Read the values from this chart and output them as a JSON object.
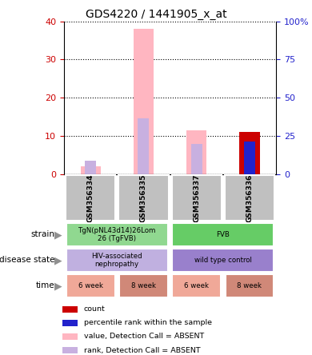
{
  "title": "GDS4220 / 1441905_x_at",
  "samples": [
    "GSM356334",
    "GSM356335",
    "GSM356337",
    "GSM356336"
  ],
  "bar_data": {
    "pink_value": [
      2.0,
      38.0,
      11.5,
      0.0
    ],
    "lavender_rank": [
      3.5,
      14.5,
      7.8,
      0.0
    ],
    "red_count": [
      0.0,
      0.0,
      0.0,
      11.0
    ],
    "blue_percentile": [
      0.0,
      0.0,
      0.0,
      8.5
    ]
  },
  "ylim": [
    0,
    40
  ],
  "yticks_left": [
    0,
    10,
    20,
    30,
    40
  ],
  "yticks_right_vals": [
    0,
    25,
    50,
    75,
    100
  ],
  "yticks_right_labels": [
    "0",
    "25",
    "50",
    "75",
    "100%"
  ],
  "colors": {
    "pink": "#FFB6C1",
    "lavender": "#C8B0E0",
    "red": "#CC0000",
    "blue": "#2222CC",
    "sample_bg": "#C0C0C0",
    "strain_tg_bg": "#90D890",
    "strain_fvb_bg": "#66CC66",
    "disease_tg_bg": "#C0B0E0",
    "disease_fvb_bg": "#9980CC",
    "time_6w_bg": "#F0A898",
    "time_8w_bg": "#D08878",
    "arrow_color": "#909090"
  },
  "metadata": {
    "strain": [
      {
        "label": "TgN(pNL43d14)26Lom\n26 (TgFVB)",
        "span": [
          0,
          2
        ],
        "color": "#90D890"
      },
      {
        "label": "FVB",
        "span": [
          2,
          4
        ],
        "color": "#66CC66"
      }
    ],
    "disease_state": [
      {
        "label": "HIV-associated\nnephropathy",
        "span": [
          0,
          2
        ],
        "color": "#C0B0E0"
      },
      {
        "label": "wild type control",
        "span": [
          2,
          4
        ],
        "color": "#9980CC"
      }
    ],
    "time": [
      {
        "label": "6 week",
        "span": [
          0,
          1
        ],
        "color": "#F0A898"
      },
      {
        "label": "8 week",
        "span": [
          1,
          2
        ],
        "color": "#D08878"
      },
      {
        "label": "6 week",
        "span": [
          2,
          3
        ],
        "color": "#F0A898"
      },
      {
        "label": "8 week",
        "span": [
          3,
          4
        ],
        "color": "#D08878"
      }
    ]
  },
  "legend": [
    {
      "color": "#CC0000",
      "label": "count"
    },
    {
      "color": "#2222CC",
      "label": "percentile rank within the sample"
    },
    {
      "color": "#FFB6C1",
      "label": "value, Detection Call = ABSENT"
    },
    {
      "color": "#C8B0E0",
      "label": "rank, Detection Call = ABSENT"
    }
  ],
  "row_labels": [
    "strain",
    "disease state",
    "time"
  ],
  "left_tick_color": "#CC0000",
  "right_tick_color": "#2222CC"
}
